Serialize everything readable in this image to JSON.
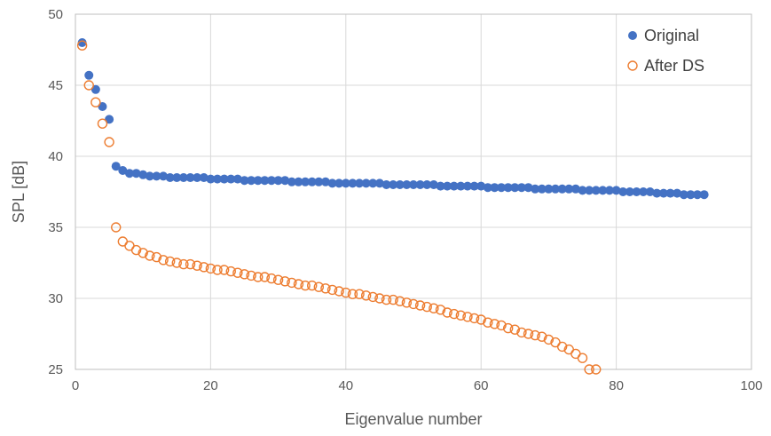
{
  "chart_data": {
    "type": "scatter",
    "title": "",
    "xlabel": "Eigenvalue number",
    "ylabel": "SPL [dB]",
    "xlim": [
      0,
      100
    ],
    "ylim": [
      25,
      50
    ],
    "x_ticks": [
      0,
      20,
      40,
      60,
      80,
      100
    ],
    "y_ticks": [
      25,
      30,
      35,
      40,
      45,
      50
    ],
    "grid": true,
    "legend_position": "top-right",
    "series": [
      {
        "name": "Original",
        "marker": "filled-circle",
        "color": "#4472C4",
        "x": [
          1,
          2,
          3,
          4,
          5,
          6,
          7,
          8,
          9,
          10,
          11,
          12,
          13,
          14,
          15,
          16,
          17,
          18,
          19,
          20,
          21,
          22,
          23,
          24,
          25,
          26,
          27,
          28,
          29,
          30,
          31,
          32,
          33,
          34,
          35,
          36,
          37,
          38,
          39,
          40,
          41,
          42,
          43,
          44,
          45,
          46,
          47,
          48,
          49,
          50,
          51,
          52,
          53,
          54,
          55,
          56,
          57,
          58,
          59,
          60,
          61,
          62,
          63,
          64,
          65,
          66,
          67,
          68,
          69,
          70,
          71,
          72,
          73,
          74,
          75,
          76,
          77,
          78,
          79,
          80,
          81,
          82,
          83,
          84,
          85,
          86,
          87,
          88,
          89,
          90,
          91,
          92,
          93
        ],
        "y": [
          48.0,
          45.7,
          44.7,
          43.5,
          42.6,
          39.3,
          39.0,
          38.8,
          38.8,
          38.7,
          38.6,
          38.6,
          38.6,
          38.5,
          38.5,
          38.5,
          38.5,
          38.5,
          38.5,
          38.4,
          38.4,
          38.4,
          38.4,
          38.4,
          38.3,
          38.3,
          38.3,
          38.3,
          38.3,
          38.3,
          38.3,
          38.2,
          38.2,
          38.2,
          38.2,
          38.2,
          38.2,
          38.1,
          38.1,
          38.1,
          38.1,
          38.1,
          38.1,
          38.1,
          38.1,
          38.0,
          38.0,
          38.0,
          38.0,
          38.0,
          38.0,
          38.0,
          38.0,
          37.9,
          37.9,
          37.9,
          37.9,
          37.9,
          37.9,
          37.9,
          37.8,
          37.8,
          37.8,
          37.8,
          37.8,
          37.8,
          37.8,
          37.7,
          37.7,
          37.7,
          37.7,
          37.7,
          37.7,
          37.7,
          37.6,
          37.6,
          37.6,
          37.6,
          37.6,
          37.6,
          37.5,
          37.5,
          37.5,
          37.5,
          37.5,
          37.4,
          37.4,
          37.4,
          37.4,
          37.3,
          37.3,
          37.3,
          37.3
        ]
      },
      {
        "name": "After DS",
        "marker": "hollow-circle",
        "color": "#ED7D31",
        "x": [
          1,
          2,
          3,
          4,
          5,
          6,
          7,
          8,
          9,
          10,
          11,
          12,
          13,
          14,
          15,
          16,
          17,
          18,
          19,
          20,
          21,
          22,
          23,
          24,
          25,
          26,
          27,
          28,
          29,
          30,
          31,
          32,
          33,
          34,
          35,
          36,
          37,
          38,
          39,
          40,
          41,
          42,
          43,
          44,
          45,
          46,
          47,
          48,
          49,
          50,
          51,
          52,
          53,
          54,
          55,
          56,
          57,
          58,
          59,
          60,
          61,
          62,
          63,
          64,
          65,
          66,
          67,
          68,
          69,
          70,
          71,
          72,
          73,
          74,
          75,
          76,
          77
        ],
        "y": [
          47.8,
          45.0,
          43.8,
          42.3,
          41.0,
          35.0,
          34.0,
          33.7,
          33.4,
          33.2,
          33.0,
          32.9,
          32.7,
          32.6,
          32.5,
          32.4,
          32.4,
          32.3,
          32.2,
          32.1,
          32.0,
          32.0,
          31.9,
          31.8,
          31.7,
          31.6,
          31.5,
          31.5,
          31.4,
          31.3,
          31.2,
          31.1,
          31.0,
          30.9,
          30.9,
          30.8,
          30.7,
          30.6,
          30.5,
          30.4,
          30.3,
          30.3,
          30.2,
          30.1,
          30.0,
          29.9,
          29.9,
          29.8,
          29.7,
          29.6,
          29.5,
          29.4,
          29.3,
          29.2,
          29.0,
          28.9,
          28.8,
          28.7,
          28.6,
          28.5,
          28.3,
          28.2,
          28.1,
          27.9,
          27.8,
          27.6,
          27.5,
          27.4,
          27.3,
          27.1,
          26.9,
          26.6,
          26.4,
          26.1,
          25.8,
          25.0,
          25.0
        ]
      }
    ]
  }
}
